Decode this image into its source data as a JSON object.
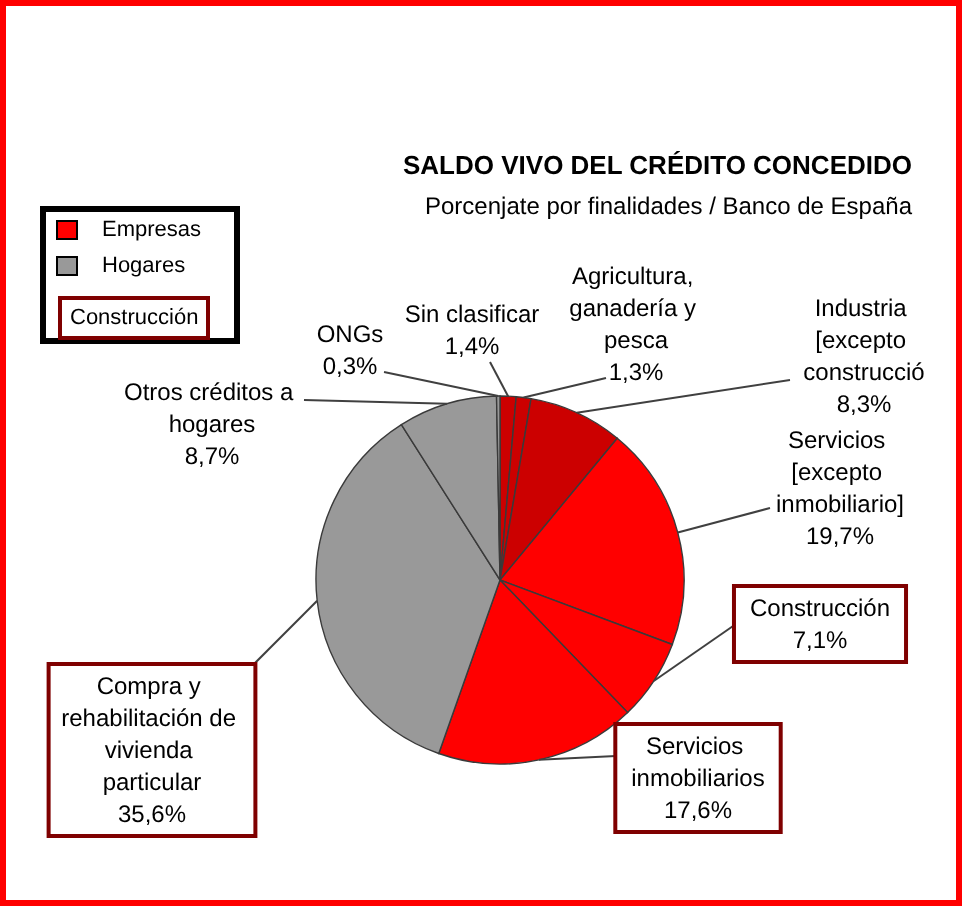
{
  "chart_data": {
    "type": "pie",
    "title": "SALDO VIVO DEL CRÉDITO CONCEDIDO",
    "subtitle": "Porcenjate por finalidades / Banco de España",
    "categories": [
      "Sin clasificar",
      "Agricultura, ganadería y pesca",
      "Industria [excepto construcció",
      "Servicios [excepto inmobiliario]",
      "Construcción",
      "Servicios inmobiliarios",
      "Compra y rehabilitación de vivienda particular",
      "Otros créditos a hogares",
      "ONGs"
    ],
    "values": [
      1.4,
      1.3,
      8.3,
      19.7,
      7.1,
      17.6,
      35.6,
      8.7,
      0.3
    ],
    "colors": [
      "#cc0000",
      "#cc0000",
      "#cc0000",
      "#ff0000",
      "#ff0000",
      "#ff0000",
      "#999999",
      "#999999",
      "#999999"
    ],
    "value_labels": [
      "1,4%",
      "1,3%",
      "8,3%",
      "19,7%",
      "7,1%",
      "17,6%",
      "35,6%",
      "8,7%",
      "0,3%"
    ],
    "annotations": [
      "Empresas",
      "Hogares",
      "Construcción"
    ]
  }
}
